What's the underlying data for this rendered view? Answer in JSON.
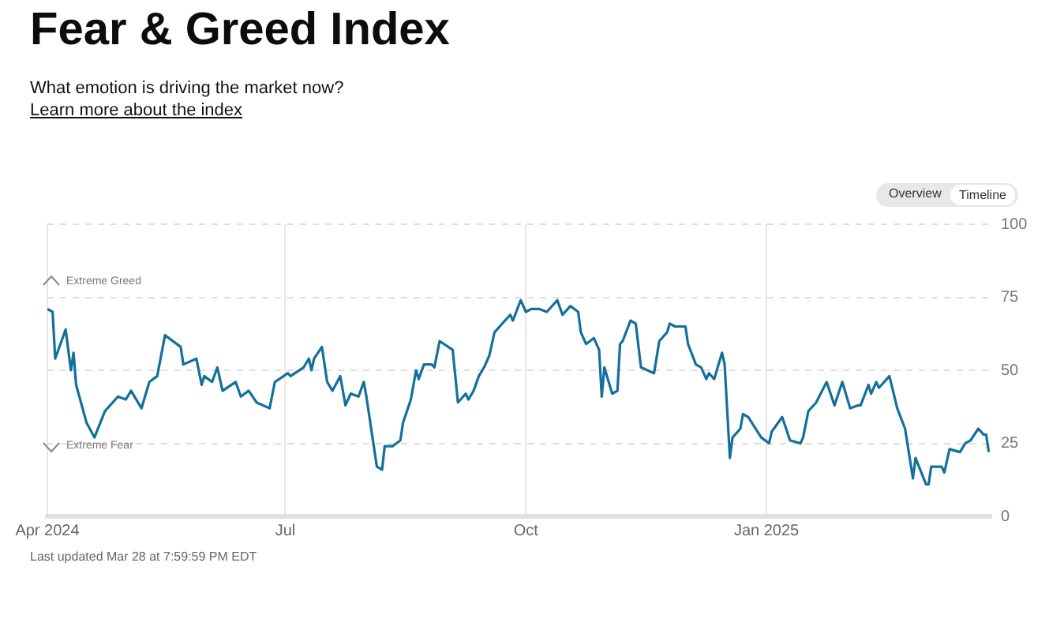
{
  "chart_data": {
    "type": "line",
    "title": "Fear & Greed Index",
    "subtitle": "What emotion is driving the market now?",
    "annotations": [
      "Learn more about the index",
      "Extreme Greed",
      "Extreme Fear",
      "Overview",
      "Timeline",
      "Last updated Mar 28 at 7:59:59 PM EDT"
    ],
    "x": [
      "2024-04-01",
      "2024-04-03",
      "2024-04-04",
      "2024-04-08",
      "2024-04-10",
      "2024-04-11",
      "2024-04-12",
      "2024-04-16",
      "2024-04-19",
      "2024-04-23",
      "2024-04-28",
      "2024-05-01",
      "2024-05-03",
      "2024-05-07",
      "2024-05-10",
      "2024-05-13",
      "2024-05-16",
      "2024-05-22",
      "2024-05-23",
      "2024-05-28",
      "2024-05-30",
      "2024-05-31",
      "2024-06-03",
      "2024-06-05",
      "2024-06-07",
      "2024-06-12",
      "2024-06-14",
      "2024-06-17",
      "2024-06-20",
      "2024-06-25",
      "2024-06-27",
      "2024-07-02",
      "2024-07-03",
      "2024-07-08",
      "2024-07-10",
      "2024-07-11",
      "2024-07-12",
      "2024-07-15",
      "2024-07-17",
      "2024-07-19",
      "2024-07-22",
      "2024-07-24",
      "2024-07-26",
      "2024-07-29",
      "2024-07-31",
      "2024-08-01",
      "2024-08-02",
      "2024-08-05",
      "2024-08-07",
      "2024-08-08",
      "2024-08-11",
      "2024-08-14",
      "2024-08-15",
      "2024-08-18",
      "2024-08-20",
      "2024-08-21",
      "2024-08-23",
      "2024-08-26",
      "2024-08-27",
      "2024-08-29",
      "2024-09-03",
      "2024-09-05",
      "2024-09-08",
      "2024-09-09",
      "2024-09-11",
      "2024-09-13",
      "2024-09-15",
      "2024-09-17",
      "2024-09-19",
      "2024-09-22",
      "2024-09-25",
      "2024-09-26",
      "2024-09-29",
      "2024-10-01",
      "2024-10-03",
      "2024-10-06",
      "2024-10-09",
      "2024-10-13",
      "2024-10-15",
      "2024-10-18",
      "2024-10-21",
      "2024-10-22",
      "2024-10-24",
      "2024-10-27",
      "2024-10-29",
      "2024-10-30",
      "2024-10-31",
      "2024-11-03",
      "2024-11-05",
      "2024-11-06",
      "2024-11-07",
      "2024-11-10",
      "2024-11-12",
      "2024-11-14",
      "2024-11-19",
      "2024-11-21",
      "2024-11-24",
      "2024-11-25",
      "2024-11-27",
      "2024-12-01",
      "2024-12-02",
      "2024-12-05",
      "2024-12-07",
      "2024-12-09",
      "2024-12-10",
      "2024-12-12",
      "2024-12-15",
      "2024-12-16",
      "2024-12-18",
      "2024-12-19",
      "2024-12-22",
      "2024-12-23",
      "2024-12-25",
      "2024-12-30",
      "2025-01-02",
      "2025-01-03",
      "2025-01-07",
      "2025-01-10",
      "2025-01-14",
      "2025-01-15",
      "2025-01-17",
      "2025-01-20",
      "2025-01-24",
      "2025-01-27",
      "2025-01-30",
      "2025-02-02",
      "2025-02-05",
      "2025-02-06",
      "2025-02-09",
      "2025-02-10",
      "2025-02-12",
      "2025-02-13",
      "2025-02-17",
      "2025-02-20",
      "2025-02-23",
      "2025-02-26",
      "2025-02-27",
      "2025-03-03",
      "2025-03-04",
      "2025-03-05",
      "2025-03-09",
      "2025-03-10",
      "2025-03-12",
      "2025-03-16",
      "2025-03-18",
      "2025-03-20",
      "2025-03-23",
      "2025-03-25",
      "2025-03-26",
      "2025-03-27"
    ],
    "series": [
      {
        "color": "#13709c",
        "values": [
          71,
          70,
          54,
          64,
          50,
          56,
          45,
          32,
          27,
          36,
          41,
          40,
          43,
          37,
          46,
          48,
          62,
          58,
          52,
          54,
          45,
          48,
          46,
          51,
          43,
          46,
          41,
          43,
          39,
          37,
          46,
          49,
          48,
          51,
          54,
          50,
          54,
          58,
          46,
          43,
          48,
          38,
          42,
          41,
          46,
          41,
          35,
          17,
          16,
          24,
          24,
          26,
          32,
          40,
          50,
          47,
          52,
          52,
          51,
          60,
          57,
          39,
          42,
          40,
          43,
          48,
          51,
          55,
          63,
          66,
          69,
          67,
          74,
          70,
          71,
          71,
          70,
          74,
          69,
          72,
          70,
          63,
          59,
          61,
          57,
          41,
          51,
          42,
          43,
          59,
          60,
          67,
          66,
          51,
          49,
          60,
          63,
          66,
          65,
          65,
          59,
          52,
          51,
          47,
          49,
          47,
          56,
          52,
          20,
          27,
          30,
          35,
          34,
          27,
          25,
          29,
          34,
          26,
          25,
          27,
          36,
          39,
          46,
          38,
          46,
          37,
          38,
          38,
          45,
          42,
          46,
          44,
          48,
          37,
          30,
          13,
          20,
          11,
          11,
          17,
          17,
          15,
          23,
          22,
          25,
          26,
          30,
          28,
          28,
          22
        ]
      }
    ],
    "xlim": [
      "2024-04-01",
      "2025-03-28"
    ],
    "xticks": [
      {
        "value": "2024-04-01",
        "label": "Apr 2024"
      },
      {
        "value": "2024-07-01",
        "label": "Jul"
      },
      {
        "value": "2024-10-01",
        "label": "Oct"
      },
      {
        "value": "2025-01-01",
        "label": "Jan 2025"
      }
    ],
    "ylim": [
      0,
      100
    ],
    "yticks": [
      0,
      25,
      50,
      75,
      100
    ],
    "grid": true,
    "legend": false,
    "marker": "none",
    "line_style": "solid"
  }
}
